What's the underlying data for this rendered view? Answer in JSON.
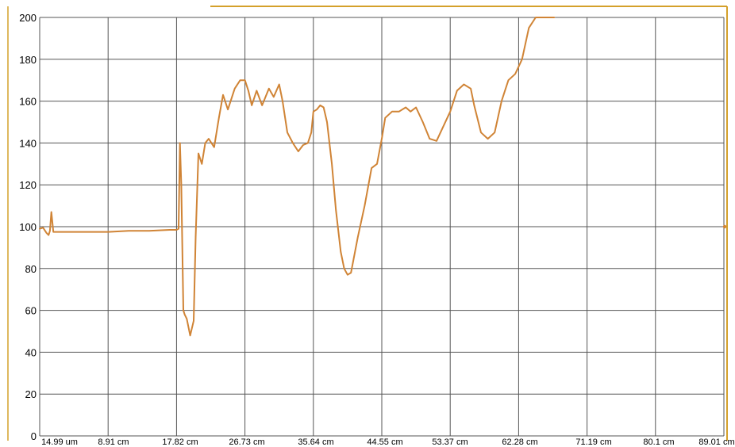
{
  "chart_data": {
    "type": "line",
    "title": "",
    "xlabel": "",
    "ylabel": "",
    "ylim": [
      0,
      200
    ],
    "y_ticks": [
      "0",
      "20",
      "40",
      "60",
      "80",
      "100",
      "120",
      "140",
      "160",
      "180",
      "200"
    ],
    "x_tick_labels": [
      "14.99 um",
      "8.91 cm",
      "17.82 cm",
      "26.73 cm",
      "35.64 cm",
      "44.55 cm",
      "53.37 cm",
      "62.28 cm",
      "71.19 cm",
      "80.1 cm",
      "89.01 cm"
    ],
    "grid": true,
    "legend": "none",
    "colors": {
      "line": "#D08436",
      "frame": "#D4A02A",
      "grid": "#555555",
      "background": "#FFFFFF"
    },
    "series": [
      {
        "x_unit": "grid divisions (0–10)",
        "x": [
          0.0,
          0.05,
          0.1,
          0.13,
          0.15,
          0.17,
          0.2,
          0.3,
          0.5,
          0.8,
          1.0,
          1.3,
          1.6,
          1.9,
          2.0,
          2.03,
          2.05,
          2.07,
          2.1,
          2.12,
          2.15,
          2.2,
          2.25,
          2.28,
          2.32,
          2.37,
          2.42,
          2.47,
          2.55,
          2.62,
          2.68,
          2.75,
          2.85,
          2.93,
          3.0,
          3.05,
          3.1,
          3.17,
          3.25,
          3.35,
          3.42,
          3.5,
          3.55,
          3.62,
          3.7,
          3.78,
          3.85,
          3.92,
          3.97,
          4.0,
          4.05,
          4.1,
          4.15,
          4.2,
          4.27,
          4.33,
          4.4,
          4.45,
          4.5,
          4.55,
          4.65,
          4.75,
          4.85,
          4.93,
          5.0,
          5.05,
          5.15,
          5.25,
          5.35,
          5.42,
          5.5,
          5.6,
          5.7,
          5.8,
          5.9,
          6.0,
          6.1,
          6.2,
          6.3,
          6.35,
          6.45,
          6.55,
          6.65,
          6.75,
          6.85,
          6.95,
          7.05,
          7.15,
          7.25,
          7.35,
          7.45,
          7.5,
          7.52
        ],
        "y": [
          99,
          99.5,
          97,
          96,
          98,
          107,
          97.5,
          97.5,
          97.5,
          97.5,
          97.5,
          98,
          98,
          98.5,
          98.5,
          99,
          140,
          120,
          60,
          58,
          56,
          48,
          55,
          95,
          135,
          130,
          140,
          142,
          138,
          152,
          163,
          156,
          166,
          170,
          170,
          165,
          158,
          165,
          158,
          166,
          162,
          168,
          160,
          145,
          140,
          136,
          139,
          140,
          145,
          155,
          156,
          158,
          157,
          150,
          130,
          108,
          88,
          80,
          77,
          78,
          95,
          110,
          128,
          130,
          142,
          152,
          155,
          155,
          157,
          155,
          157,
          150,
          142,
          141,
          148,
          155,
          165,
          168,
          166,
          158,
          145,
          142,
          145,
          160,
          170,
          173,
          180,
          195,
          200,
          200,
          200,
          200,
          200
        ]
      }
    ]
  }
}
